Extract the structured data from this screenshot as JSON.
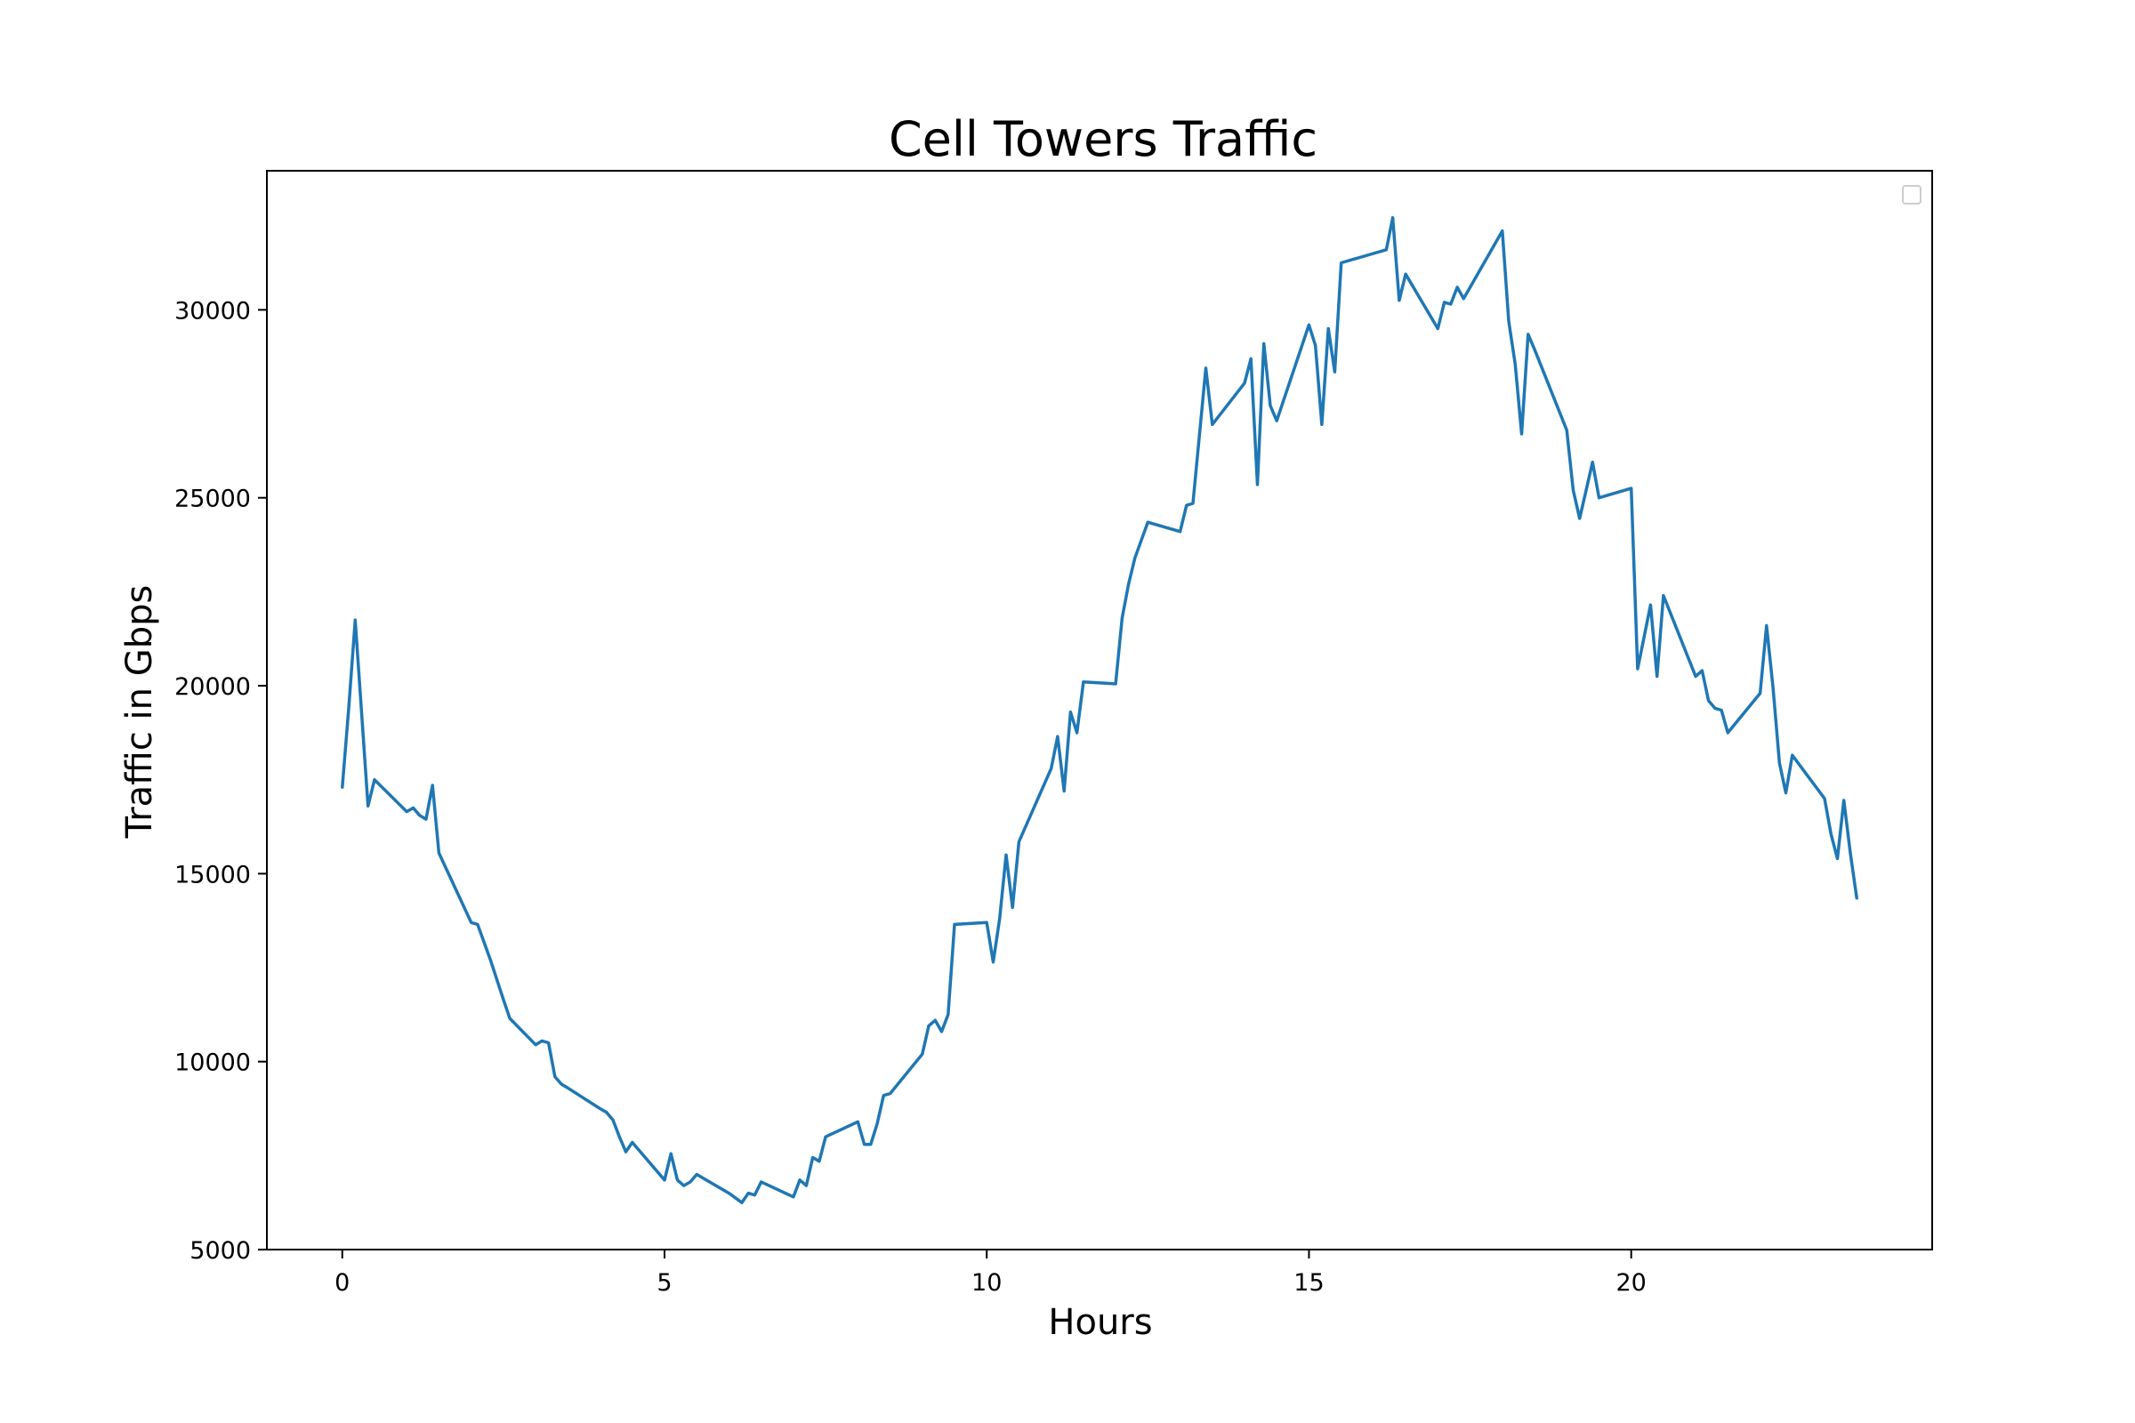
{
  "chart_data": {
    "type": "line",
    "title": "Cell Towers Traffic",
    "xlabel": "Hours",
    "ylabel": "Traffic in Gbps",
    "xlim": [
      -1.17,
      24.67
    ],
    "ylim": [
      5000,
      33700
    ],
    "xticks": [
      0,
      5,
      10,
      15,
      20
    ],
    "yticks": [
      5000,
      10000,
      15000,
      20000,
      25000,
      30000
    ],
    "grid": false,
    "legend": "top-right",
    "colors": {
      "series": "#1f77b4"
    },
    "series": [
      {
        "x": [
          0.0,
          0.1,
          0.2,
          0.4,
          0.5,
          1.0,
          1.1,
          1.2,
          1.3,
          1.4,
          1.5,
          2.0,
          2.1,
          2.3,
          2.5,
          2.6,
          3.0,
          3.1,
          3.2,
          3.3,
          3.4,
          3.5,
          4.0,
          4.1,
          4.2,
          4.3,
          4.4,
          4.5,
          5.0,
          5.1,
          5.2,
          5.3,
          5.4,
          5.5,
          6.0,
          6.2,
          6.3,
          6.4,
          6.5,
          7.0,
          7.1,
          7.2,
          7.3,
          7.4,
          7.5,
          8.0,
          8.1,
          8.2,
          8.3,
          8.4,
          8.5,
          9.0,
          9.1,
          9.2,
          9.3,
          9.4,
          9.5,
          10.0,
          10.1,
          10.2,
          10.3,
          10.4,
          10.5,
          11.0,
          11.1,
          11.2,
          11.3,
          11.4,
          11.5,
          12.0,
          12.1,
          12.2,
          12.3,
          12.5,
          13.0,
          13.1,
          13.2,
          13.4,
          13.5,
          14.0,
          14.1,
          14.2,
          14.3,
          14.4,
          14.5,
          15.0,
          15.1,
          15.2,
          15.3,
          15.4,
          15.5,
          16.0,
          16.1,
          16.2,
          16.3,
          16.4,
          16.5,
          17.0,
          17.1,
          17.2,
          17.3,
          17.4,
          17.5,
          18.0,
          18.1,
          18.2,
          18.3,
          18.4,
          18.5,
          19.0,
          19.1,
          19.2,
          19.3,
          19.4,
          19.5,
          20.0,
          20.1,
          20.2,
          20.3,
          20.4,
          20.5,
          21.0,
          21.1,
          21.2,
          21.3,
          21.4,
          21.5,
          22.0,
          22.1,
          22.2,
          22.3,
          22.4,
          22.5,
          23.0,
          23.1,
          23.2,
          23.3,
          23.4,
          23.5
        ],
        "values": [
          17300,
          19400,
          21750,
          16800,
          17500,
          16650,
          16750,
          16550,
          16450,
          17350,
          15550,
          13700,
          13650,
          12700,
          11650,
          11150,
          10450,
          10550,
          10500,
          9600,
          9400,
          9300,
          8750,
          8650,
          8450,
          8000,
          7600,
          7850,
          6850,
          7550,
          6850,
          6700,
          6800,
          7000,
          6500,
          6250,
          6500,
          6450,
          6800,
          6400,
          6850,
          6700,
          7450,
          7350,
          8000,
          8400,
          7800,
          7800,
          8350,
          9100,
          9150,
          10200,
          10950,
          11100,
          10800,
          11250,
          13650,
          13700,
          12650,
          13800,
          15500,
          14100,
          15850,
          17800,
          18650,
          17200,
          19300,
          18750,
          20100,
          20050,
          21800,
          22700,
          23400,
          24350,
          24100,
          24800,
          24850,
          28450,
          26950,
          28050,
          28700,
          25350,
          29100,
          27450,
          27050,
          29600,
          29050,
          26950,
          29500,
          28350,
          31250,
          31500,
          31550,
          31600,
          32450,
          30250,
          30950,
          29500,
          30200,
          30150,
          30600,
          30300,
          30600,
          32100,
          29700,
          28550,
          26700,
          29350,
          28950,
          26800,
          25200,
          24450,
          25200,
          25950,
          25000,
          25250,
          20450,
          21300,
          22150,
          20250,
          22400,
          20250,
          20400,
          19600,
          19400,
          19350,
          18750,
          19800,
          21600,
          19950,
          17950,
          17150,
          18150,
          17000,
          16050,
          15400,
          16950,
          15550,
          14350
        ]
      }
    ]
  }
}
